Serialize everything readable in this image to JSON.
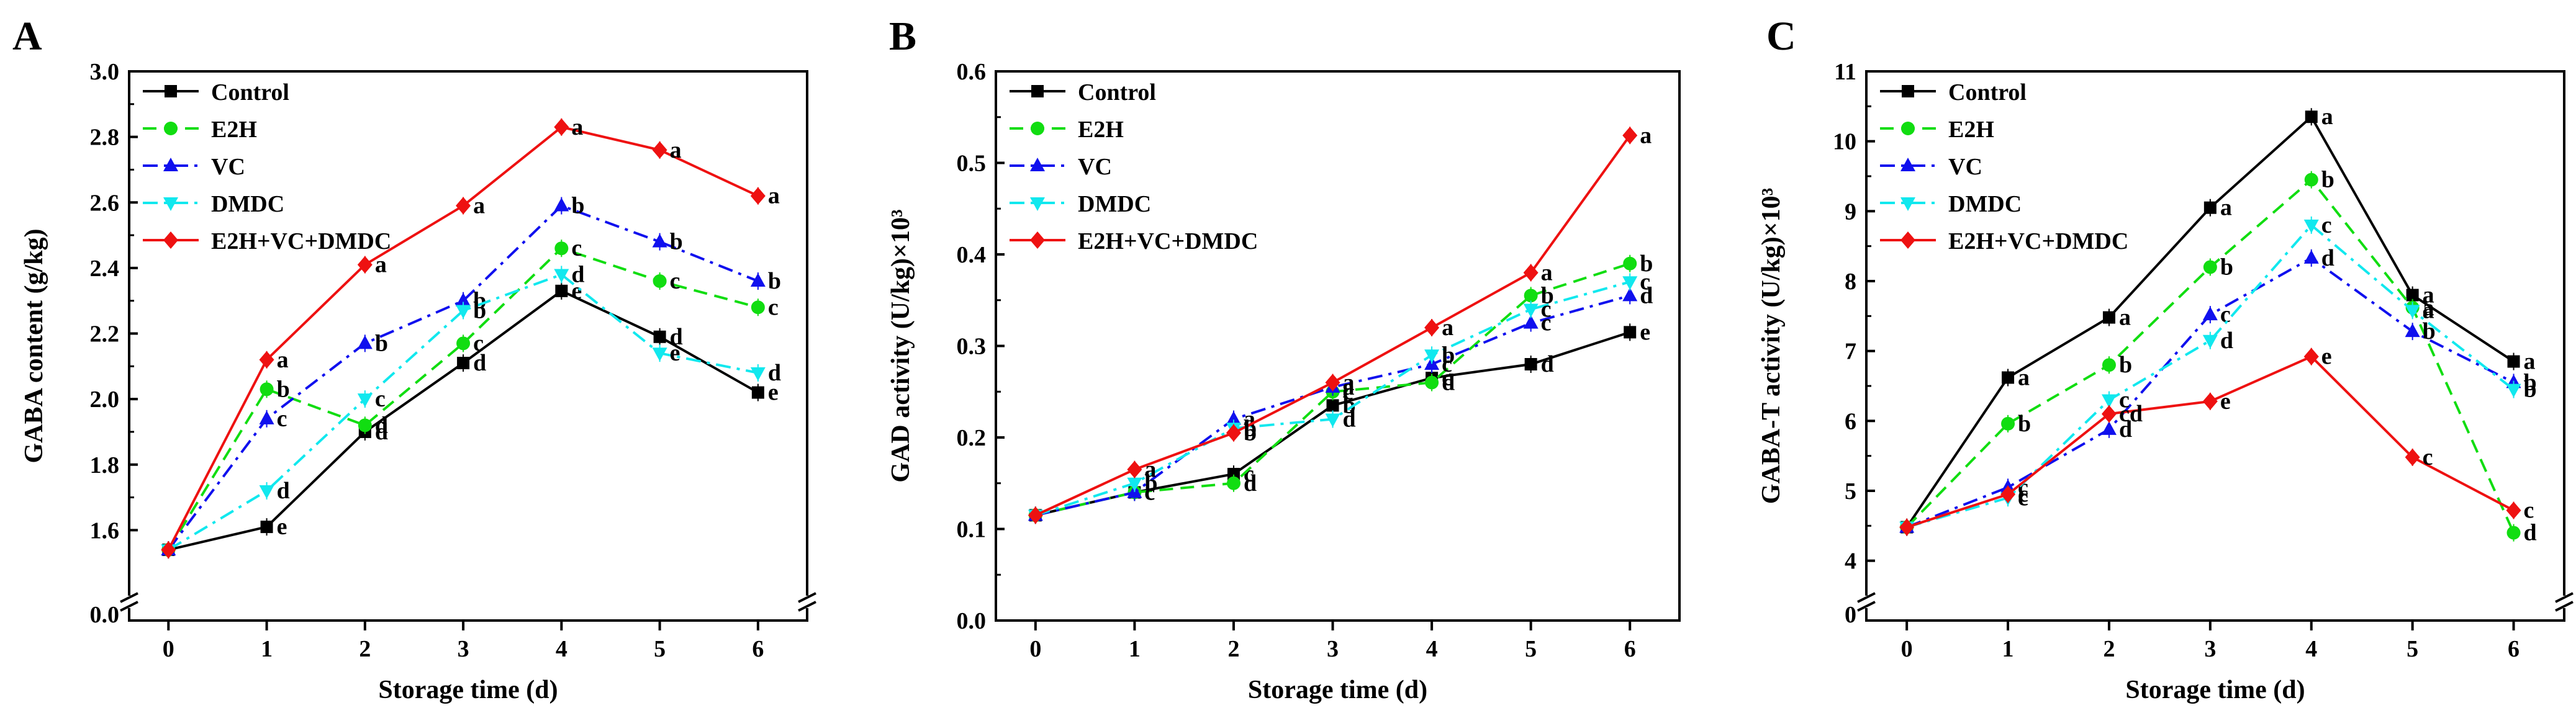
{
  "chart_data": [
    {
      "type": "line",
      "panel": "A",
      "title": "",
      "xlabel": "Storage time (d)",
      "ylabel": "GABA content (g/kg)",
      "x": [
        0,
        1,
        2,
        3,
        4,
        5,
        6
      ],
      "xlim": [
        -0.4,
        6.5
      ],
      "ylim": [
        1.4,
        3.0
      ],
      "y_ticks": [
        "1.6",
        "1.8",
        "2.0",
        "2.2",
        "2.4",
        "2.6",
        "2.8",
        "3.0"
      ],
      "y_ticks_values": [
        1.6,
        1.8,
        2.0,
        2.2,
        2.4,
        2.6,
        2.8,
        3.0
      ],
      "y_break_label": "0.0",
      "legend_position": "top-left",
      "series": [
        {
          "name": "Control",
          "values": [
            1.54,
            1.61,
            1.9,
            2.11,
            2.33,
            2.19,
            2.02
          ],
          "letters": [
            "",
            "e",
            "d",
            "d",
            "e",
            "d",
            "e"
          ]
        },
        {
          "name": "E2H",
          "values": [
            1.54,
            2.03,
            1.92,
            2.17,
            2.46,
            2.36,
            2.28
          ],
          "letters": [
            "",
            "b",
            "d",
            "c",
            "c",
            "c",
            "c"
          ]
        },
        {
          "name": "VC",
          "values": [
            1.54,
            1.94,
            2.17,
            2.3,
            2.59,
            2.48,
            2.36
          ],
          "letters": [
            "",
            "c",
            "b",
            "b",
            "b",
            "b",
            "b"
          ]
        },
        {
          "name": "DMDC",
          "values": [
            1.54,
            1.72,
            2.0,
            2.27,
            2.38,
            2.14,
            2.08
          ],
          "letters": [
            "",
            "d",
            "c",
            "b",
            "d",
            "e",
            "d"
          ]
        },
        {
          "name": "E2H+VC+DMDC",
          "values": [
            1.54,
            2.12,
            2.41,
            2.59,
            2.83,
            2.76,
            2.62
          ],
          "letters": [
            "",
            "a",
            "a",
            "a",
            "a",
            "a",
            "a"
          ]
        }
      ]
    },
    {
      "type": "line",
      "panel": "B",
      "title": "",
      "xlabel": "Storage time (d)",
      "ylabel": "GAD activity (U/kg)×10³",
      "x": [
        0,
        1,
        2,
        3,
        4,
        5,
        6
      ],
      "xlim": [
        -0.4,
        6.5
      ],
      "ylim": [
        0.0,
        0.6
      ],
      "y_ticks": [
        "0.0",
        "0.1",
        "0.2",
        "0.3",
        "0.4",
        "0.5",
        "0.6"
      ],
      "y_ticks_values": [
        0.0,
        0.1,
        0.2,
        0.3,
        0.4,
        0.5,
        0.6
      ],
      "legend_position": "top-left",
      "series": [
        {
          "name": "Control",
          "values": [
            0.115,
            0.14,
            0.16,
            0.235,
            0.265,
            0.28,
            0.315
          ],
          "letters": [
            "",
            "c",
            "c",
            "b",
            "c",
            "d",
            "e"
          ]
        },
        {
          "name": "E2H",
          "values": [
            0.115,
            0.14,
            0.15,
            0.25,
            0.26,
            0.355,
            0.39
          ],
          "letters": [
            "",
            "c",
            "d",
            "c",
            "d",
            "b",
            "b"
          ]
        },
        {
          "name": "VC",
          "values": [
            0.115,
            0.14,
            0.22,
            0.255,
            0.28,
            0.325,
            0.355
          ],
          "letters": [
            "",
            "c",
            "a",
            "a",
            "c",
            "c",
            "d"
          ]
        },
        {
          "name": "DMDC",
          "values": [
            0.115,
            0.15,
            0.21,
            0.22,
            0.29,
            0.34,
            0.37
          ],
          "letters": [
            "",
            "b",
            "b",
            "d",
            "b",
            "c",
            "c"
          ]
        },
        {
          "name": "E2H+VC+DMDC",
          "values": [
            0.115,
            0.165,
            0.205,
            0.26,
            0.32,
            0.38,
            0.53
          ],
          "letters": [
            "",
            "a",
            "b",
            "a",
            "a",
            "a",
            "a"
          ]
        }
      ]
    },
    {
      "type": "line",
      "panel": "C",
      "title": "",
      "xlabel": "Storage time (d)",
      "ylabel": "GABA-T activity (U/kg)×10³",
      "x": [
        0,
        1,
        2,
        3,
        4,
        5,
        6
      ],
      "xlim": [
        -0.4,
        6.5
      ],
      "ylim": [
        3.5,
        11
      ],
      "y_ticks": [
        "4",
        "5",
        "6",
        "7",
        "8",
        "9",
        "10",
        "11"
      ],
      "y_ticks_values": [
        4,
        5,
        6,
        7,
        8,
        9,
        10,
        11
      ],
      "y_break_label": "0",
      "legend_position": "top-left",
      "series": [
        {
          "name": "Control",
          "values": [
            4.48,
            6.62,
            7.48,
            9.05,
            10.35,
            7.8,
            6.85
          ],
          "letters": [
            "",
            "a",
            "a",
            "a",
            "a",
            "a",
            "a"
          ]
        },
        {
          "name": "E2H",
          "values": [
            4.48,
            5.96,
            6.8,
            8.2,
            9.45,
            7.62,
            4.4
          ],
          "letters": [
            "",
            "b",
            "b",
            "b",
            "b",
            "a",
            "d"
          ]
        },
        {
          "name": "VC",
          "values": [
            4.48,
            5.05,
            5.88,
            7.52,
            8.33,
            7.28,
            6.55
          ],
          "letters": [
            "",
            "c",
            "d",
            "c",
            "d",
            "b",
            "b"
          ]
        },
        {
          "name": "DMDC",
          "values": [
            4.48,
            4.9,
            6.3,
            7.15,
            8.8,
            7.58,
            6.45
          ],
          "letters": [
            "",
            "c",
            "c",
            "d",
            "c",
            "a",
            "b"
          ]
        },
        {
          "name": "E2H+VC+DMDC",
          "values": [
            4.48,
            4.95,
            6.1,
            6.28,
            6.92,
            5.48,
            4.72
          ],
          "letters": [
            "",
            "c",
            "cd",
            "e",
            "e",
            "c",
            "c"
          ]
        }
      ]
    }
  ],
  "series_styles": [
    {
      "name": "Control",
      "color": "#000000",
      "marker": "square",
      "dash": "solid"
    },
    {
      "name": "E2H",
      "color": "#11dd11",
      "marker": "circle",
      "dash": "dash"
    },
    {
      "name": "VC",
      "color": "#1010ee",
      "marker": "triangle-up",
      "dash": "dashdot"
    },
    {
      "name": "DMDC",
      "color": "#11e8ee",
      "marker": "triangle-down",
      "dash": "dashdot"
    },
    {
      "name": "E2H+VC+DMDC",
      "color": "#ee1111",
      "marker": "diamond",
      "dash": "solid"
    }
  ]
}
